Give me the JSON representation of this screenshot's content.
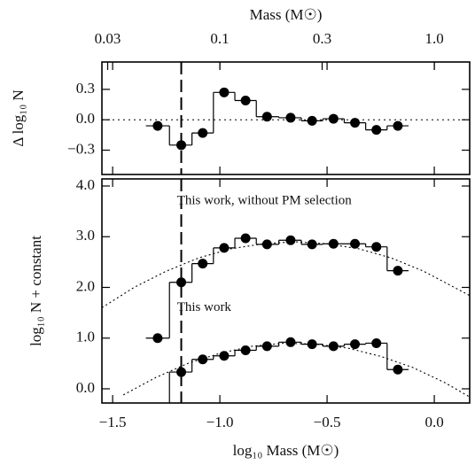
{
  "chart_data": [
    {
      "type": "step",
      "ylabel": "Δ log₁₀ N",
      "x2label": "Mass (M☉)",
      "x2lim": [
        0.0282,
        1.462
      ],
      "x2log": true,
      "x2ticks": [
        0.03,
        0.1,
        0.3,
        {
          "value": 1,
          "label": "1.0"
        }
      ],
      "xlim": [
        -1.55,
        0.165
      ],
      "ylim": [
        -0.54,
        0.57
      ],
      "yticks": [
        0.3,
        {
          "value": 0,
          "label": "0.0"
        },
        {
          "value": -0.3,
          "label": "−0.3"
        }
      ],
      "reference_line": 0,
      "vline": -1.18,
      "x": [
        -1.29,
        -1.18,
        -1.08,
        -0.98,
        -0.88,
        -0.78,
        -0.67,
        -0.57,
        -0.47,
        -0.37,
        -0.27,
        -0.17
      ],
      "series": [
        {
          "color": "#000",
          "values": [
            -0.06,
            -0.25,
            -0.13,
            0.27,
            0.19,
            0.03,
            0.02,
            -0.01,
            0.01,
            -0.03,
            -0.1,
            -0.06
          ]
        }
      ]
    },
    {
      "type": "step",
      "xlabel": "log₁₀ Mass (M☉)",
      "ylabel": "log₁₀ N + constant",
      "xlim": [
        -1.55,
        0.165
      ],
      "xticks": [
        {
          "value": -1.5,
          "label": "−1.5"
        },
        {
          "value": -1,
          "label": "−1.0"
        },
        {
          "value": -0.5,
          "label": "−0.5"
        },
        {
          "value": 0,
          "label": "0.0"
        }
      ],
      "ylim": [
        -0.28,
        4.14
      ],
      "yticks": [
        {
          "value": 0,
          "label": "0.0"
        },
        {
          "value": 1,
          "label": "1.0"
        },
        {
          "value": 2,
          "label": "2.0"
        },
        {
          "value": 3,
          "label": "3.0"
        },
        {
          "value": 4,
          "label": "4.0"
        }
      ],
      "vline": -1.18,
      "annotations": [
        {
          "text": "This work, without PM selection",
          "x": -1.2,
          "y": 3.7
        },
        {
          "text": "This work",
          "x": -1.2,
          "y": 1.6
        }
      ],
      "x": [
        -1.29,
        -1.18,
        -1.08,
        -0.98,
        -0.88,
        -0.78,
        -0.67,
        -0.57,
        -0.47,
        -0.37,
        -0.27,
        -0.17
      ],
      "series": [
        {
          "color": "#000",
          "values": [
            1.0,
            2.1,
            2.47,
            2.78,
            2.97,
            2.85,
            2.93,
            2.85,
            2.86,
            2.86,
            2.8,
            2.33
          ]
        },
        {
          "color": "#000",
          "values": [
            null,
            0.33,
            0.58,
            0.65,
            0.76,
            0.84,
            0.92,
            0.88,
            0.84,
            0.88,
            0.9,
            0.38
          ]
        }
      ],
      "curves": [
        {
          "x": [
            -1.55,
            -1.4,
            -1.25,
            -1.1,
            -0.95,
            -0.8,
            -0.65,
            -0.5,
            -0.35,
            -0.2,
            -0.05,
            0.165
          ],
          "values": [
            1.6,
            2.0,
            2.32,
            2.58,
            2.76,
            2.86,
            2.9,
            2.86,
            2.76,
            2.58,
            2.32,
            1.84
          ]
        },
        {
          "x": [
            -1.45,
            -1.3,
            -1.15,
            -1.0,
            -0.85,
            -0.7,
            -0.55,
            -0.4,
            -0.25,
            -0.1,
            0.05,
            0.165
          ],
          "values": [
            -0.12,
            0.22,
            0.5,
            0.7,
            0.84,
            0.9,
            0.88,
            0.8,
            0.64,
            0.42,
            0.12,
            -0.16
          ]
        }
      ]
    }
  ]
}
